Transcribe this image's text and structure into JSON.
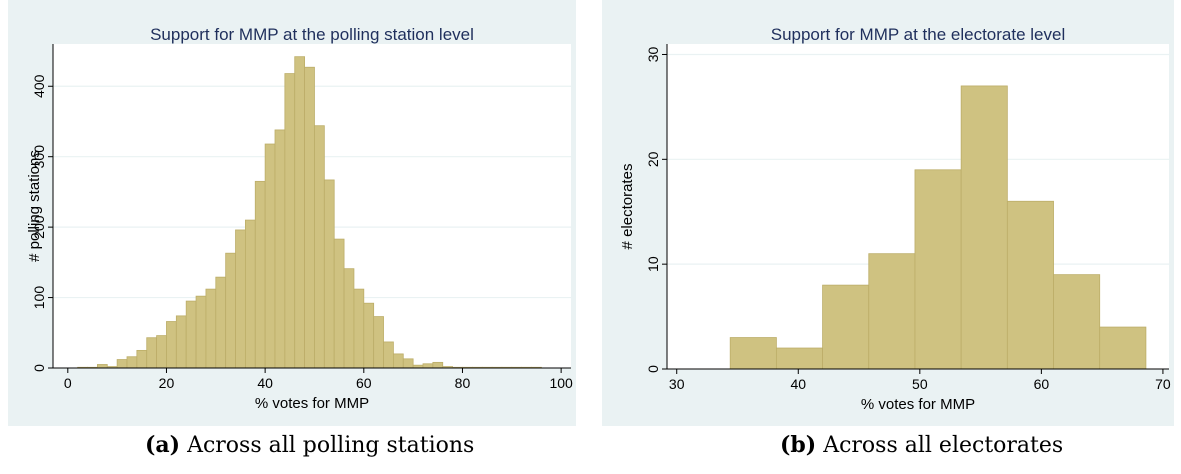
{
  "chart_data": [
    {
      "type": "bar",
      "title": "Support for MMP at the polling station level",
      "xlabel": "% votes for MMP",
      "ylabel": "# polling stations",
      "xlim": [
        -3,
        102
      ],
      "ylim": [
        0,
        460
      ],
      "xticks": [
        0,
        20,
        40,
        60,
        80,
        100
      ],
      "yticks": [
        0,
        100,
        200,
        300,
        400
      ],
      "grid": true,
      "bin_width": 2,
      "bin_starts": [
        2,
        4,
        6,
        8,
        10,
        12,
        14,
        16,
        18,
        20,
        22,
        24,
        26,
        28,
        30,
        32,
        34,
        36,
        38,
        40,
        42,
        44,
        46,
        48,
        50,
        52,
        54,
        56,
        58,
        60,
        62,
        64,
        66,
        68,
        70,
        72,
        74,
        76,
        78,
        80,
        82,
        84,
        86,
        88,
        90,
        92,
        94
      ],
      "values": [
        1,
        1,
        5,
        2,
        12,
        16,
        25,
        43,
        46,
        66,
        74,
        95,
        102,
        112,
        129,
        163,
        196,
        210,
        265,
        318,
        338,
        418,
        442,
        427,
        344,
        267,
        183,
        141,
        112,
        92,
        73,
        37,
        20,
        13,
        4,
        6,
        8,
        2,
        1,
        1,
        1,
        1,
        1,
        1,
        1,
        1,
        1
      ]
    },
    {
      "type": "bar",
      "title": "Support for MMP at the electorate level",
      "xlabel": "% votes for MMP",
      "ylabel": "# electorates",
      "xlim": [
        29.2,
        70.5
      ],
      "ylim": [
        0,
        31
      ],
      "xticks": [
        30,
        40,
        50,
        60,
        70
      ],
      "yticks": [
        0,
        10,
        20,
        30
      ],
      "grid": true,
      "bin_edges": [
        34.4,
        38.2,
        42.0,
        45.8,
        49.6,
        53.4,
        57.2,
        61.0,
        64.8,
        68.6
      ],
      "values": [
        3,
        2,
        8,
        11,
        19,
        27,
        16,
        9,
        4
      ]
    }
  ],
  "captions": {
    "a_label": "(a)",
    "a_text": "Across all polling stations",
    "b_label": "(b)",
    "b_text": "Across all electorates"
  },
  "colors": {
    "panel_bg": "#eaf2f3",
    "plot_bg": "#ffffff",
    "bar_fill": "#cfc281",
    "bar_edge": "#bcad68",
    "title": "#1f2f5c",
    "grid": "#eaf2f3"
  }
}
